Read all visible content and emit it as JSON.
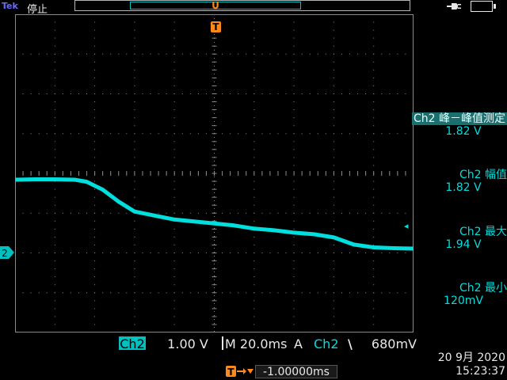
{
  "header": {
    "brand": "Tek",
    "run_state": "停止"
  },
  "markers": {
    "trigger_position": "U",
    "trigger_point": "T",
    "channel_ground": "2",
    "trigger_level_arrow": "◂"
  },
  "icons": {
    "power": "plug-icon",
    "battery": "battery-icon"
  },
  "measurements": [
    {
      "channel": "Ch2",
      "label": "峰－峰值测定",
      "value": "1.82 V"
    },
    {
      "channel": "Ch2",
      "label": "幅值",
      "value": "1.82 V"
    },
    {
      "channel": "Ch2",
      "label": "最大",
      "value": "1.94 V"
    },
    {
      "channel": "Ch2",
      "label": "最小",
      "value": "120mV"
    }
  ],
  "status": {
    "channel": "Ch2",
    "volts_per_div": "1.00 V",
    "timebase": "M 20.0ms",
    "trigger_mode": "A",
    "trigger_source": "Ch2",
    "trigger_slope": "falling",
    "trigger_slope_glyph": "\\",
    "trigger_level": "680mV",
    "trigger_offset": "-1.00000ms"
  },
  "datetime": {
    "date": "20 9月 2020",
    "time": "15:23:37"
  },
  "colors": {
    "ch2": "#00dede",
    "trigger": "#ff8a1a",
    "grid": "#8a8a8a"
  },
  "waveform": {
    "channel": "Ch2",
    "volts_per_div": 1.0,
    "time_per_div_ms": 20,
    "samples_div_offset": [
      [
        0.0,
        1.85
      ],
      [
        0.5,
        1.86
      ],
      [
        1.0,
        1.86
      ],
      [
        1.5,
        1.85
      ],
      [
        1.8,
        1.8
      ],
      [
        2.2,
        1.6
      ],
      [
        2.6,
        1.3
      ],
      [
        3.0,
        1.05
      ],
      [
        3.5,
        0.95
      ],
      [
        4.0,
        0.85
      ],
      [
        4.5,
        0.8
      ],
      [
        5.0,
        0.75
      ],
      [
        5.5,
        0.7
      ],
      [
        6.0,
        0.62
      ],
      [
        6.5,
        0.58
      ],
      [
        7.0,
        0.52
      ],
      [
        7.5,
        0.48
      ],
      [
        8.0,
        0.4
      ],
      [
        8.5,
        0.22
      ],
      [
        9.0,
        0.15
      ],
      [
        9.5,
        0.13
      ],
      [
        10.0,
        0.12
      ]
    ]
  }
}
